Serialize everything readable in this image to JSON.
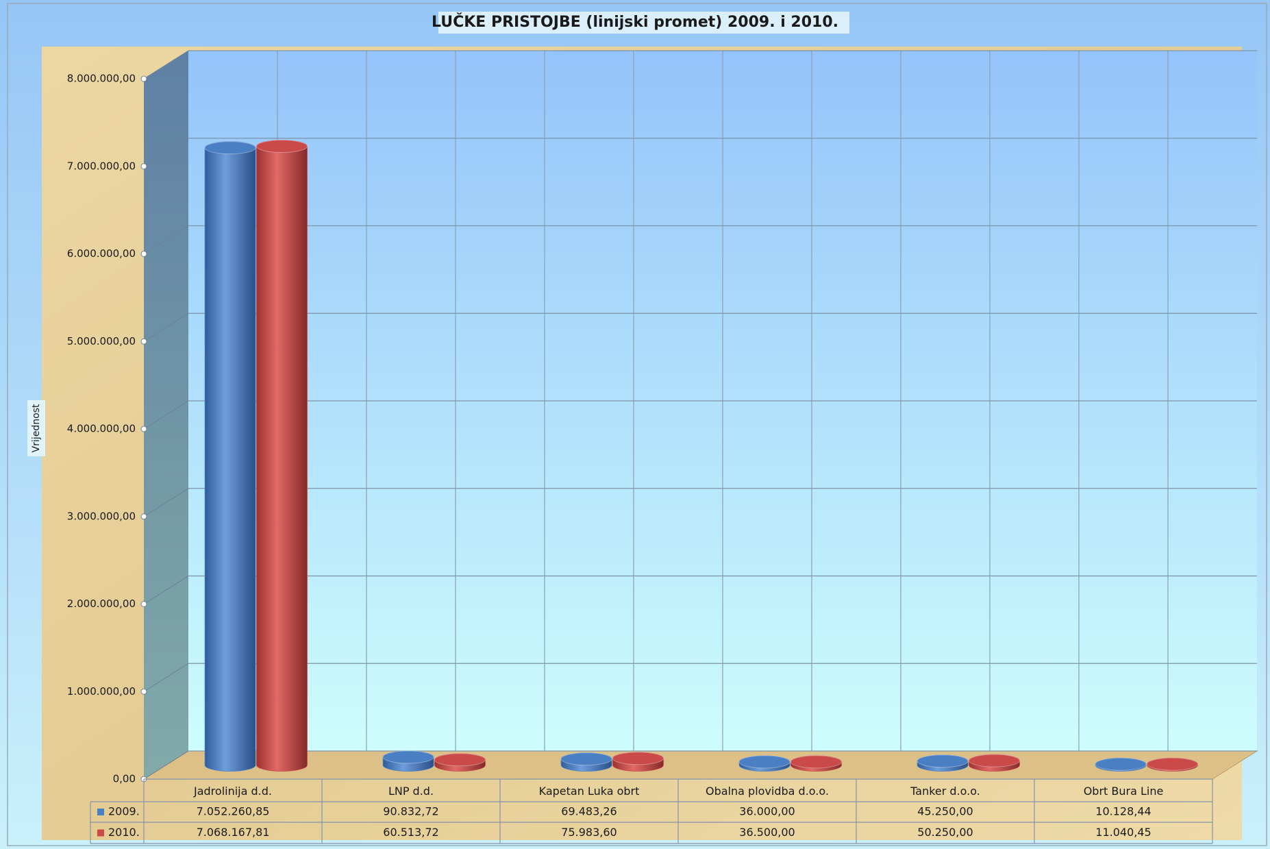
{
  "chart_data": {
    "type": "bar",
    "title": "LUČKE PRISTOJBE (linijski promet) 2009. i 2010.",
    "y_label": "Vrijednost",
    "categories": [
      "Jadrolinija d.d.",
      "LNP d.d.",
      "Kapetan Luka obrt",
      "Obalna plovidba d.o.o.",
      "Tanker d.o.o.",
      "Obrt Bura Line"
    ],
    "series": [
      {
        "name": "2009.",
        "color": "#4a7fc4",
        "values": [
          7052260.85,
          90832.72,
          69483.26,
          36000.0,
          45250.0,
          10128.44
        ],
        "value_labels": [
          "7.052.260,85",
          "90.832,72",
          "69.483,26",
          "36.000,00",
          "45.250,00",
          "10.128,44"
        ]
      },
      {
        "name": "2010.",
        "color": "#c94a48",
        "values": [
          7068167.81,
          60513.72,
          75983.6,
          36500.0,
          50250.0,
          11040.45
        ],
        "value_labels": [
          "7.068.167,81",
          "60.513,72",
          "75.983,60",
          "36.500,00",
          "50.250,00",
          "11.040,45"
        ]
      }
    ],
    "ylim": [
      0,
      8000000
    ],
    "yticks": [
      {
        "value": 0,
        "label": "0,00"
      },
      {
        "value": 1000000,
        "label": "1.000.000,00"
      },
      {
        "value": 2000000,
        "label": "2.000.000,00"
      },
      {
        "value": 3000000,
        "label": "3.000.000,00"
      },
      {
        "value": 4000000,
        "label": "4.000.000,00"
      },
      {
        "value": 5000000,
        "label": "5.000.000,00"
      },
      {
        "value": 6000000,
        "label": "6.000.000,00"
      },
      {
        "value": 7000000,
        "label": "7.000.000,00"
      },
      {
        "value": 8000000,
        "label": "8.000.000,00"
      }
    ],
    "grid": true
  }
}
